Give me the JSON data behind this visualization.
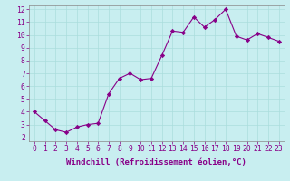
{
  "x": [
    0,
    1,
    2,
    3,
    4,
    5,
    6,
    7,
    8,
    9,
    10,
    11,
    12,
    13,
    14,
    15,
    16,
    17,
    18,
    19,
    20,
    21,
    22,
    23
  ],
  "y": [
    4.0,
    3.3,
    2.6,
    2.4,
    2.8,
    3.0,
    3.1,
    5.4,
    6.6,
    7.0,
    6.5,
    6.6,
    8.4,
    10.3,
    10.2,
    11.4,
    10.6,
    11.2,
    12.0,
    9.9,
    9.6,
    10.1,
    9.8,
    9.5
  ],
  "xlabel": "Windchill (Refroidissement éolien,°C)",
  "xlim_min": -0.5,
  "xlim_max": 23.5,
  "ylim_min": 1.7,
  "ylim_max": 12.3,
  "yticks": [
    2,
    3,
    4,
    5,
    6,
    7,
    8,
    9,
    10,
    11,
    12
  ],
  "xticks": [
    0,
    1,
    2,
    3,
    4,
    5,
    6,
    7,
    8,
    9,
    10,
    11,
    12,
    13,
    14,
    15,
    16,
    17,
    18,
    19,
    20,
    21,
    22,
    23
  ],
  "line_color": "#880088",
  "marker": "D",
  "marker_size": 2.2,
  "background_color": "#c8eef0",
  "grid_color": "#aadddd",
  "label_fontsize": 6.5,
  "tick_fontsize": 5.8,
  "label_color": "#880088",
  "tick_color": "#880088"
}
